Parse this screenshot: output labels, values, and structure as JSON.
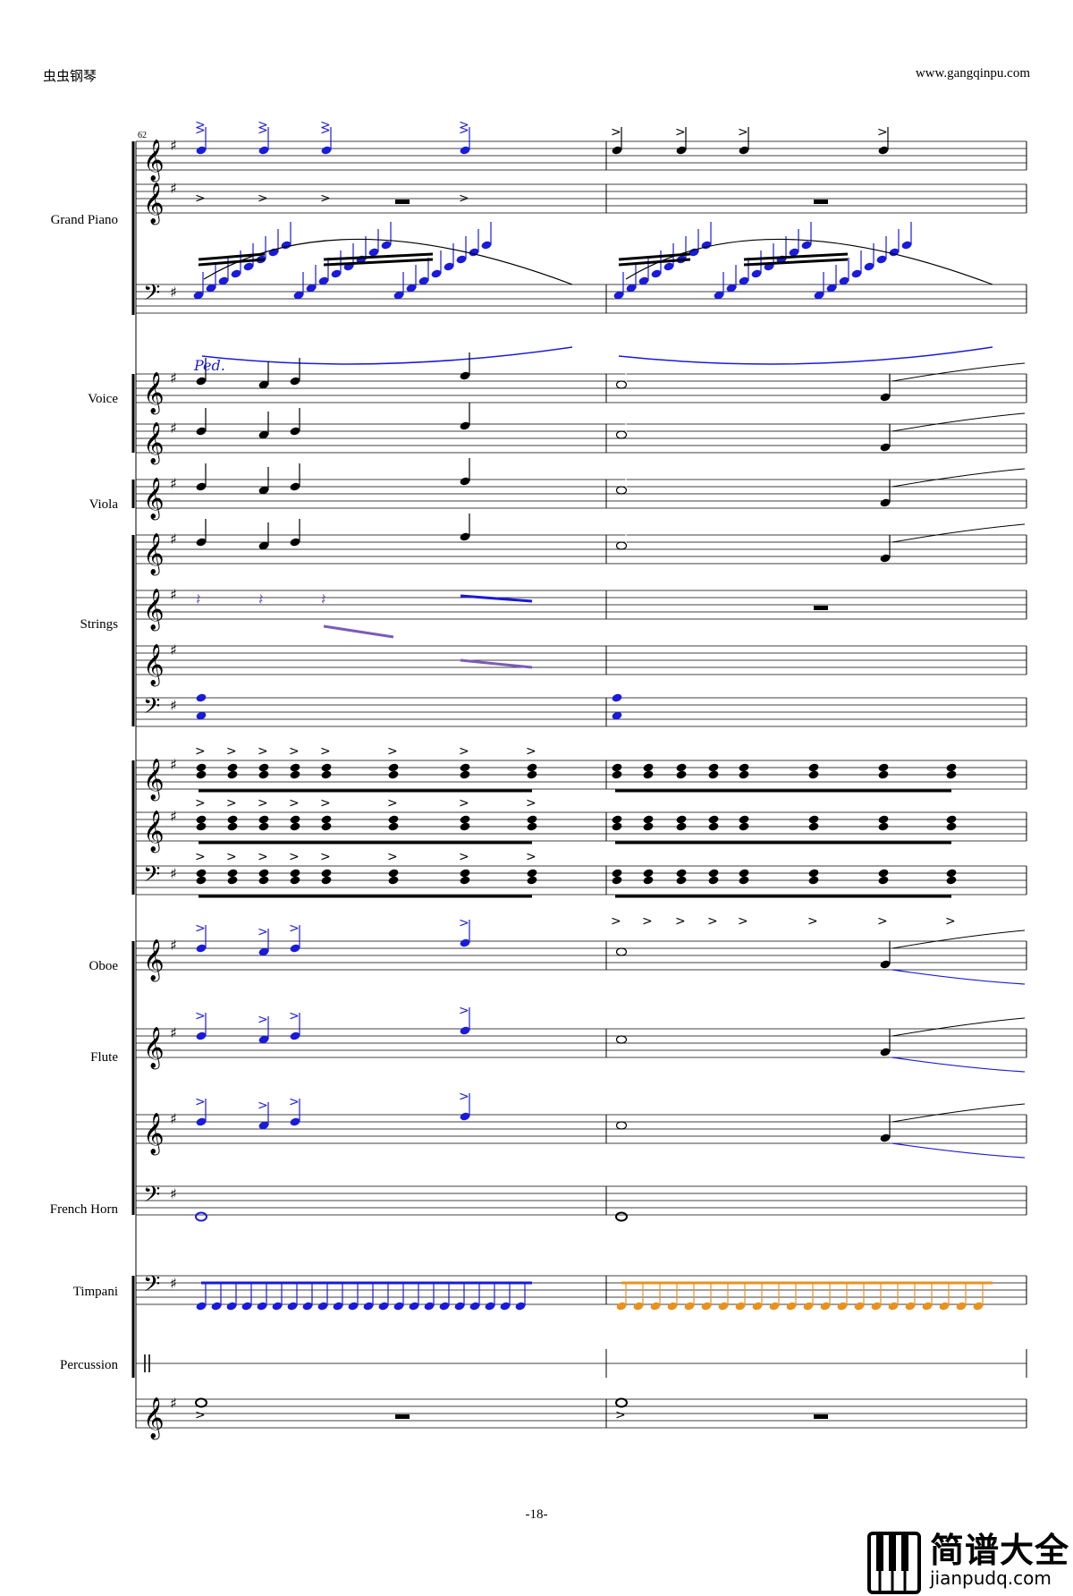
{
  "header": {
    "left": "虫虫钢琴",
    "right": "www.gangqinpu.com"
  },
  "measure_number": "62",
  "instruments": [
    {
      "label": "Grand Piano"
    },
    {
      "label": "Voice"
    },
    {
      "label": "Viola"
    },
    {
      "label": "Strings"
    },
    {
      "label": "Oboe"
    },
    {
      "label": "Flute"
    },
    {
      "label": "French Horn"
    },
    {
      "label": "Timpani"
    },
    {
      "label": "Percussion"
    }
  ],
  "pedal_mark": "Ped.",
  "page_number": "-18-",
  "logo": {
    "title": "简谱大全",
    "url": "jianpudq.com"
  },
  "colors": {
    "blue": "#1a1adb",
    "purple": "#7b5cb8",
    "orange": "#e8921e",
    "black": "#000000"
  }
}
